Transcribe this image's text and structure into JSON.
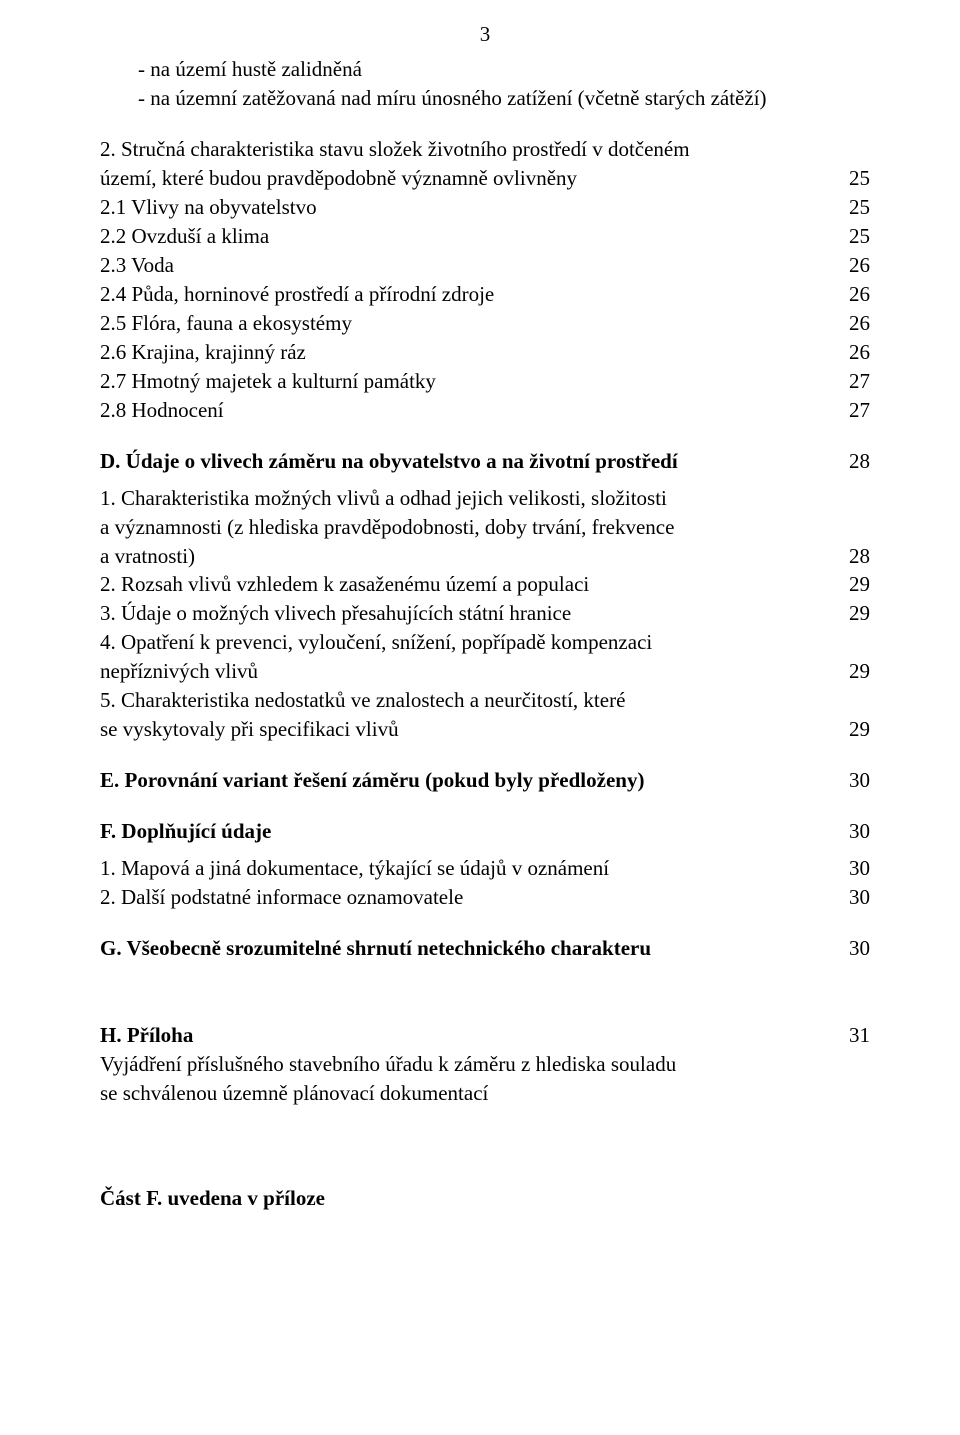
{
  "page_number": "3",
  "intro_bullets": [
    "na území  hustě zalidněná",
    "na územní zatěžovaná nad míru únosného zatížení (včetně starých zátěží)"
  ],
  "section2": {
    "lead_lines": [
      "2. Stručná charakteristika stavu složek životního prostředí v dotčeném",
      "    území, které budou pravděpodobně významně ovlivněny"
    ],
    "lead_num": "25",
    "items": [
      {
        "label": "2.1 Vlivy na obyvatelstvo",
        "num": "25"
      },
      {
        "label": "2.2 Ovzduší a klima",
        "num": "25"
      },
      {
        "label": "2.3 Voda",
        "num": "26"
      },
      {
        "label": "2.4 Půda, horninové prostředí a přírodní zdroje",
        "num": "26"
      },
      {
        "label": "2.5 Flóra, fauna a ekosystémy",
        "num": "26"
      },
      {
        "label": "2.6 Krajina, krajinný ráz",
        "num": "26"
      },
      {
        "label": "2.7 Hmotný majetek a kulturní památky",
        "num": "27"
      },
      {
        "label": "2.8 Hodnocení",
        "num": "27"
      }
    ]
  },
  "sectionD": {
    "title": "D. Údaje o vlivech záměru na obyvatelstvo a na životní prostředí",
    "num": "28",
    "items": [
      {
        "n": "1.",
        "lines": [
          "Charakteristika možných vlivů a odhad jejich velikosti, složitosti",
          "a významnosti (z hlediska pravděpodobnosti, doby trvání, frekvence",
          " a vratnosti)"
        ],
        "num": "28"
      },
      {
        "n": "2.",
        "lines": [
          "Rozsah vlivů vzhledem k zasaženému území a populaci"
        ],
        "num": "29"
      },
      {
        "n": "3.",
        "lines": [
          "Údaje o možných vlivech přesahujících státní hranice"
        ],
        "num": "29"
      },
      {
        "n": "4.",
        "lines": [
          "Opatření k prevenci, vyloučení, snížení, popřípadě kompenzaci",
          "nepříznivých vlivů"
        ],
        "num": "29"
      },
      {
        "n": "5.",
        "lines": [
          "Charakteristika nedostatků ve znalostech a neurčitostí, které",
          "se vyskytovaly při specifikaci vlivů"
        ],
        "num": "29"
      }
    ]
  },
  "sectionE": {
    "title": "E. Porovnání variant řešení záměru (pokud byly předloženy)",
    "num": "30"
  },
  "sectionF": {
    "title": "F. Doplňující údaje",
    "num": "30",
    "items": [
      {
        "n": "1.",
        "lines": [
          "Mapová a jiná dokumentace, týkající se údajů v oznámení"
        ],
        "num": "30"
      },
      {
        "n": "2.",
        "lines": [
          "Další podstatné informace oznamovatele"
        ],
        "num": "30"
      }
    ]
  },
  "sectionG": {
    "title": "G. Všeobecně srozumitelné shrnutí netechnického charakteru",
    "num": "30"
  },
  "sectionH": {
    "title": "H. Příloha",
    "num": "31",
    "lines": [
      "Vyjádření příslušného stavebního úřadu k záměru z hlediska souladu",
      "se schválenou územně plánovací dokumentací"
    ]
  },
  "footer": "Část F. uvedena v příloze"
}
